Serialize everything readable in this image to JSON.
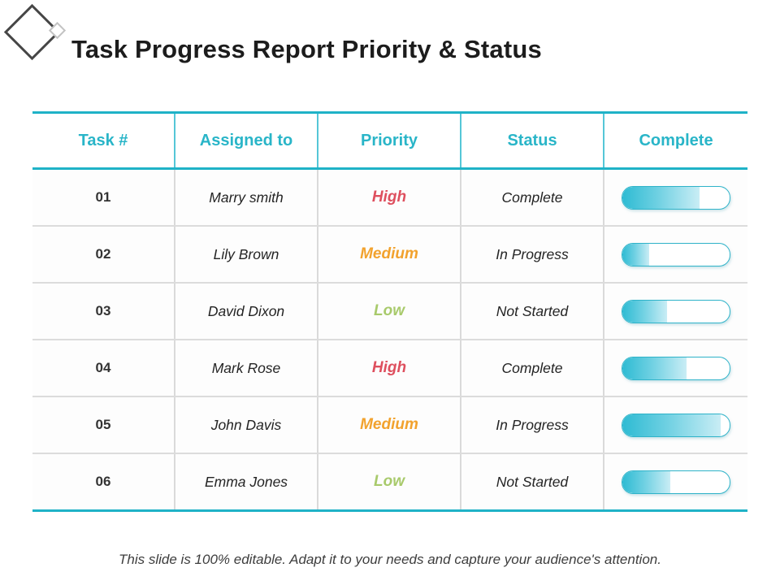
{
  "slide": {
    "title": "Task Progress Report Priority & Status",
    "footer_note": "This slide is 100% editable. Adapt it to your needs and capture your audience's attention."
  },
  "colors": {
    "accent_teal": "#29b5c8",
    "priority_high": "#de4f5e",
    "priority_medium": "#f2a22d",
    "priority_low": "#a8ca6b",
    "bar_border": "#2fb3c9",
    "bar_fill_start": "#2ebbd3",
    "bar_fill_end": "#c9edf5",
    "row_divider": "#dcdcdc"
  },
  "chart_data": {
    "type": "table",
    "title": "Task Progress Report Priority & Status",
    "columns": [
      "Task #",
      "Assigned to",
      "Priority",
      "Status",
      "Complete"
    ],
    "rows": [
      {
        "task": "01",
        "assigned": "Marry smith",
        "priority": "High",
        "priority_level": "high",
        "status": "Complete",
        "complete_pct": 72
      },
      {
        "task": "02",
        "assigned": "Lily Brown",
        "priority": "Medium",
        "priority_level": "medium",
        "status": "In Progress",
        "complete_pct": 25
      },
      {
        "task": "03",
        "assigned": "David Dixon",
        "priority": "Low",
        "priority_level": "low",
        "status": "Not Started",
        "complete_pct": 42
      },
      {
        "task": "04",
        "assigned": "Mark Rose",
        "priority": "High",
        "priority_level": "high",
        "status": "Complete",
        "complete_pct": 60
      },
      {
        "task": "05",
        "assigned": "John Davis",
        "priority": "Medium",
        "priority_level": "medium",
        "status": "In Progress",
        "complete_pct": 92
      },
      {
        "task": "06",
        "assigned": "Emma Jones",
        "priority": "Low",
        "priority_level": "low",
        "status": "Not Started",
        "complete_pct": 45
      }
    ]
  }
}
